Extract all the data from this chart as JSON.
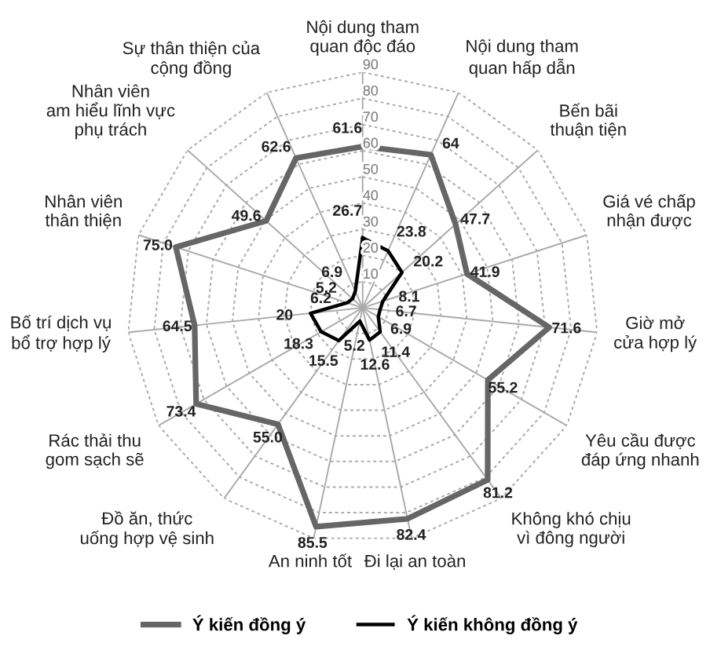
{
  "chart_data": {
    "type": "radar",
    "categories": [
      "Nội dung tham\nquan độc đáo",
      "Nội dung tham\nquan hấp dẫn",
      "Bến bãi\nthuận tiện",
      "Giá vé chấp\nnhận được",
      "Giờ mở\ncửa hợp lý",
      "Yêu cầu được\nđáp ứng nhanh",
      "Không khó chịu\nvì đông người",
      "Đi lại an toàn",
      "An ninh tốt",
      "Đồ ăn, thức\nuống hợp vệ sinh",
      "Rác thải thu\ngom sạch sẽ",
      "Bố trí dịch vụ\nbổ trợ hợp lý",
      "Nhân viên\nthân thiện",
      "Nhân viên\nam hiểu lĩnh vực\nphụ trách",
      "Sự thân thiện của\ncộng đồng"
    ],
    "series": [
      {
        "name": "Ý kiến đồng ý",
        "color": "#666666",
        "values": [
          61.6,
          64,
          47.7,
          41.9,
          71.6,
          55.2,
          81.2,
          82.4,
          85.5,
          55.0,
          73.4,
          64.5,
          75.0,
          49.6,
          62.6
        ],
        "value_labels": [
          "61.6",
          "64",
          "47.7",
          "41.9",
          "71.6",
          "55.2",
          "81.2",
          "82.4",
          "85.5",
          "55.0",
          "73.4",
          "64.5",
          "75.0",
          "49.6",
          "62.6"
        ]
      },
      {
        "name": "Ý kiến không đồng ý",
        "color": "#000000",
        "values": [
          26.7,
          23.8,
          20.2,
          8.1,
          6.7,
          6.9,
          11.4,
          12.6,
          5.2,
          15.5,
          18.3,
          20,
          6.2,
          5.2,
          6.9
        ],
        "value_labels": [
          "26.7",
          "23.8",
          "20.2",
          "8.1",
          "6.7",
          "6.9",
          "11.4",
          "12.6",
          "5.2",
          "15.5",
          "18.3",
          "20",
          "6.2",
          "5.2",
          "6.9"
        ]
      }
    ],
    "ylim": [
      0,
      90
    ],
    "yticks": [
      10,
      20,
      30,
      40,
      50,
      60,
      70,
      80,
      90
    ],
    "grid": true,
    "legend": "bottom",
    "marker": "none",
    "line_style": "solid"
  }
}
